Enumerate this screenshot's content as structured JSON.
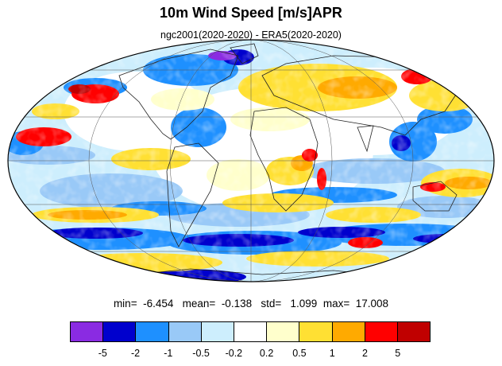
{
  "title": "10m Wind Speed [m/s]APR",
  "subtitle": "ngc2001(2020-2020) - ERA5(2020-2020)",
  "stats": {
    "min_label": "min=",
    "min": "-6.454",
    "mean_label": "mean=",
    "mean": "-0.138",
    "std_label": "std=",
    "std": "1.099",
    "max_label": "max=",
    "max": "17.008"
  },
  "colorbar": {
    "colors": [
      "#8a2be2",
      "#0000cd",
      "#1e90ff",
      "#99c9f7",
      "#cdeefd",
      "#ffffff",
      "#ffffcc",
      "#ffe033",
      "#ffaa00",
      "#ff0000",
      "#c00000"
    ],
    "labels": [
      "-5",
      "-2",
      "-1",
      "-0.5",
      "-0.2",
      "0.2",
      "0.5",
      "1",
      "2",
      "5"
    ]
  }
}
